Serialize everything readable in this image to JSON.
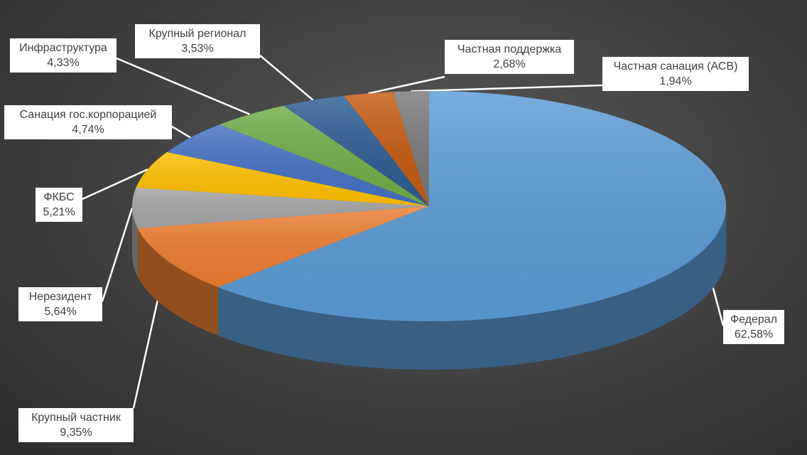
{
  "chart_data": {
    "type": "pie",
    "title": "",
    "slices": [
      {
        "name": "Федерал",
        "label": "62,58%",
        "value": 62.58,
        "color": "#5b9bd5"
      },
      {
        "name": "Крупный частник",
        "label": "9,35%",
        "value": 9.35,
        "color": "#ed7d31"
      },
      {
        "name": "Нерезидент",
        "label": "5,64%",
        "value": 5.64,
        "color": "#a5a5a5"
      },
      {
        "name": "ФКБС",
        "label": "5,21%",
        "value": 5.21,
        "color": "#ffc000"
      },
      {
        "name": "Санация гос.корпорацией",
        "label": "4,74%",
        "value": 4.74,
        "color": "#4472c4"
      },
      {
        "name": "Инфраструктура",
        "label": "4,33%",
        "value": 4.33,
        "color": "#70ad47"
      },
      {
        "name": "Крупный регионал",
        "label": "3,53%",
        "value": 3.53,
        "color": "#2c5d92"
      },
      {
        "name": "Частная поддержка",
        "label": "2,68%",
        "value": 2.68,
        "color": "#c55a11"
      },
      {
        "name": "Частная санация (АСВ)",
        "label": "1,94%",
        "value": 1.94,
        "color": "#7a7a7a"
      }
    ]
  }
}
